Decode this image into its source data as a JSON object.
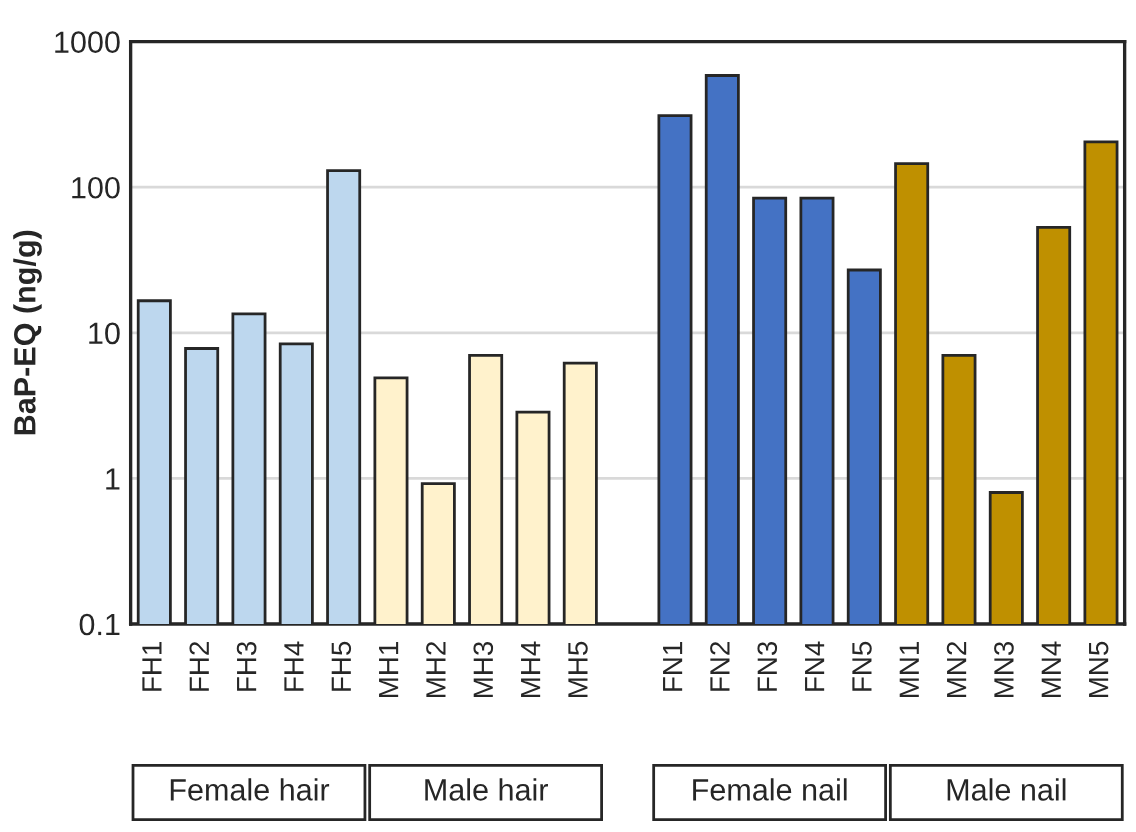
{
  "chart_data": {
    "type": "bar",
    "ylabel": "BaP-EQ (ng/g)",
    "categories": [
      "FH1",
      "FH2",
      "FH3",
      "FH4",
      "FH5",
      "MH1",
      "MH2",
      "MH3",
      "MH4",
      "MH5",
      null,
      "FN1",
      "FN2",
      "FN3",
      "FN4",
      "FN5",
      "MN1",
      "MN2",
      "MN3",
      "MN4",
      "MN5"
    ],
    "values": [
      16.6,
      7.8,
      13.5,
      8.4,
      130,
      4.9,
      0.92,
      7.0,
      2.85,
      6.2,
      null,
      310,
      585,
      84,
      84,
      27,
      145,
      7.0,
      0.8,
      53,
      205
    ],
    "colors": [
      "#bdd7ee",
      "#bdd7ee",
      "#bdd7ee",
      "#bdd7ee",
      "#bdd7ee",
      "#fff2cc",
      "#fff2cc",
      "#fff2cc",
      "#fff2cc",
      "#fff2cc",
      null,
      "#4472c4",
      "#4472c4",
      "#4472c4",
      "#4472c4",
      "#4472c4",
      "#bf9000",
      "#bf9000",
      "#bf9000",
      "#bf9000",
      "#bf9000"
    ],
    "log": true,
    "ylim": [
      0.1,
      1000
    ],
    "yticks": [
      0.1,
      1,
      10,
      100,
      1000
    ],
    "grid": "y",
    "annotations": [
      "Female hair",
      "Male hair",
      "Female nail",
      "Male nail"
    ]
  }
}
